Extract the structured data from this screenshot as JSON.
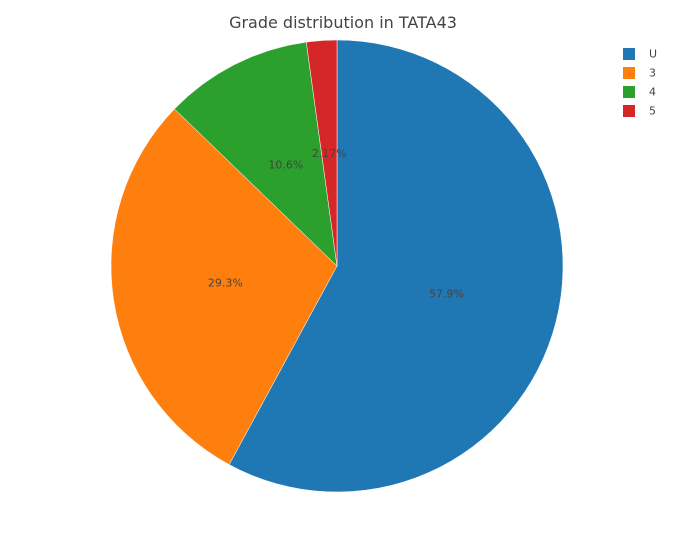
{
  "chart_data": {
    "type": "pie",
    "title": "Grade distribution in TATA43",
    "categories": [
      "U",
      "3",
      "4",
      "5"
    ],
    "values": [
      57.9,
      29.3,
      10.6,
      2.17
    ],
    "labels": [
      "57.9%",
      "29.3%",
      "10.6%",
      "2.17%"
    ],
    "colors": [
      "#1f77b4",
      "#ff7f0e",
      "#2ca02c",
      "#d62728"
    ],
    "direction": "clockwise",
    "start": "top",
    "legend_position": "top-right"
  }
}
